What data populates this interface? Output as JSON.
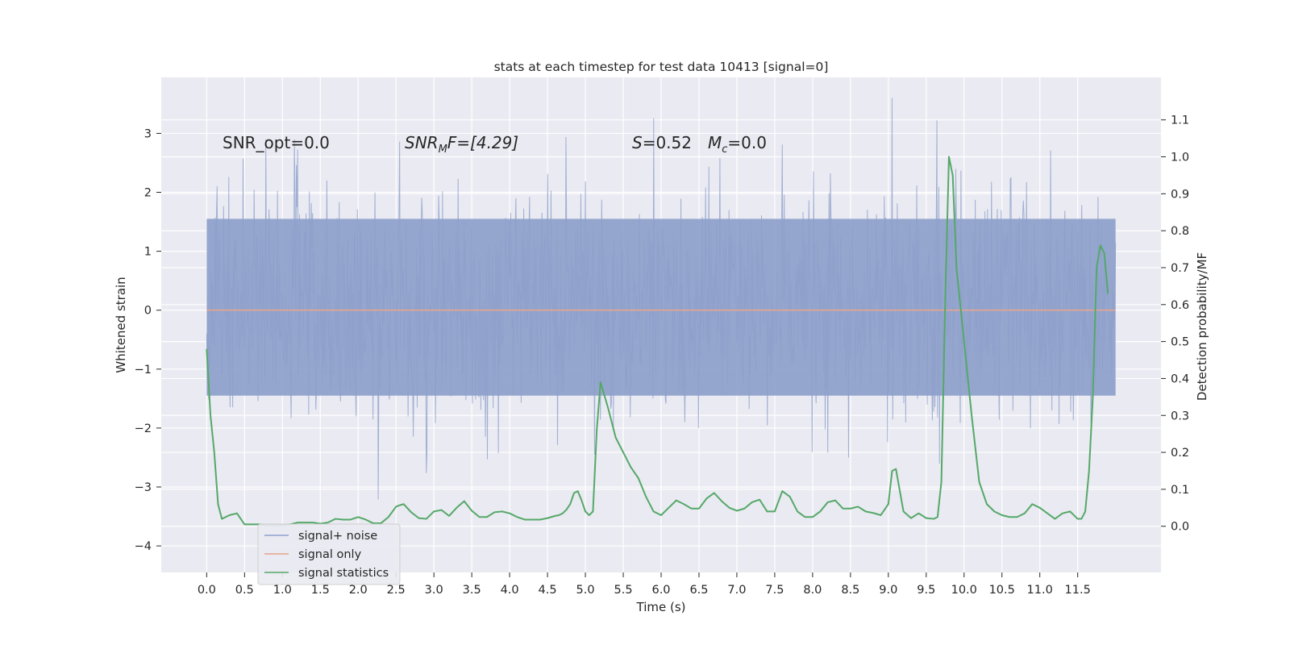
{
  "chart_data": {
    "type": "line",
    "title": "stats at each timestep for test data 10413 [signal=0]",
    "xlabel": "Time (s)",
    "ylabel": "Whitened strain",
    "y2label": "Detection probability/MF",
    "xlim": [
      -0.6,
      12.6
    ],
    "ylim": [
      -4.45,
      3.95
    ],
    "y2lim": [
      -0.125,
      1.215
    ],
    "xticks": [
      0.0,
      0.5,
      1.0,
      1.5,
      2.0,
      2.5,
      3.0,
      3.5,
      4.0,
      4.5,
      5.0,
      5.5,
      6.0,
      6.5,
      7.0,
      7.5,
      8.0,
      8.5,
      9.0,
      9.5,
      10.0,
      10.5,
      11.0,
      11.5
    ],
    "xtick_labels": [
      "0.0",
      "0.5",
      "1.0",
      "1.5",
      "2.0",
      "2.5",
      "3.0",
      "3.5",
      "4.0",
      "4.5",
      "5.0",
      "5.5",
      "6.0",
      "6.5",
      "7.0",
      "7.5",
      "8.0",
      "8.5",
      "9.0",
      "9.5",
      "10.0",
      "10.5",
      "11.0",
      "11.5"
    ],
    "yticks": [
      -4,
      -3,
      -2,
      -1,
      0,
      1,
      2,
      3
    ],
    "ytick_labels": [
      "−4",
      "−3",
      "−2",
      "−1",
      "0",
      "1",
      "2",
      "3"
    ],
    "y2ticks": [
      0.0,
      0.1,
      0.2,
      0.3,
      0.4,
      0.5,
      0.6,
      0.7,
      0.8,
      0.9,
      1.0,
      1.1
    ],
    "y2tick_labels": [
      "0.0",
      "0.1",
      "0.2",
      "0.3",
      "0.4",
      "0.5",
      "0.6",
      "0.7",
      "0.8",
      "0.9",
      "1.0",
      "1.1"
    ],
    "grid": true,
    "legend_position": "lower-left",
    "annotations": {
      "snr_opt": "SNR_opt=0.0",
      "snr_mf_prefix": "SNR",
      "snr_mf_sub": "M",
      "snr_mf_suffix": "F=[4.29]",
      "s_symbol": "S",
      "s_value": "=0.52",
      "mc_symbol": "M",
      "mc_sub": "c",
      "mc_value": "=0.0"
    },
    "series": [
      {
        "name": "signal+ noise",
        "axis": "left",
        "color": "#8da0cb",
        "opacity": 0.8,
        "x_range": [
          0.0,
          12.0
        ],
        "envelope_min": -2.0,
        "envelope_max": 2.2,
        "abs_min": -3.65,
        "abs_max": 3.6
      },
      {
        "name": "signal only",
        "axis": "left",
        "color": "#e8a48c",
        "x_range": [
          0.0,
          12.0
        ],
        "values": [
          0.0,
          0.0
        ]
      },
      {
        "name": "signal statistics",
        "axis": "right",
        "color": "#55a868",
        "x": [
          0.0,
          0.05,
          0.1,
          0.15,
          0.2,
          0.3,
          0.4,
          0.5,
          0.6,
          0.7,
          0.8,
          0.9,
          1.0,
          1.1,
          1.2,
          1.3,
          1.4,
          1.5,
          1.6,
          1.7,
          1.8,
          1.9,
          2.0,
          2.1,
          2.2,
          2.3,
          2.4,
          2.5,
          2.55,
          2.6,
          2.7,
          2.8,
          2.9,
          3.0,
          3.1,
          3.2,
          3.3,
          3.4,
          3.5,
          3.6,
          3.7,
          3.8,
          3.9,
          4.0,
          4.1,
          4.2,
          4.3,
          4.4,
          4.5,
          4.6,
          4.65,
          4.7,
          4.75,
          4.8,
          4.85,
          4.9,
          4.95,
          5.0,
          5.05,
          5.1,
          5.15,
          5.2,
          5.3,
          5.4,
          5.5,
          5.6,
          5.7,
          5.8,
          5.9,
          6.0,
          6.1,
          6.2,
          6.3,
          6.4,
          6.5,
          6.6,
          6.7,
          6.8,
          6.9,
          7.0,
          7.1,
          7.2,
          7.3,
          7.4,
          7.5,
          7.6,
          7.7,
          7.8,
          7.9,
          8.0,
          8.1,
          8.2,
          8.3,
          8.4,
          8.5,
          8.6,
          8.7,
          8.8,
          8.9,
          9.0,
          9.05,
          9.1,
          9.2,
          9.3,
          9.4,
          9.5,
          9.6,
          9.65,
          9.7,
          9.75,
          9.8,
          9.85,
          9.9,
          10.0,
          10.1,
          10.2,
          10.3,
          10.4,
          10.5,
          10.6,
          10.7,
          10.8,
          10.9,
          11.0,
          11.1,
          11.2,
          11.3,
          11.4,
          11.5,
          11.55,
          11.6,
          11.65,
          11.7,
          11.75,
          11.8,
          11.85,
          11.9
        ],
        "values": [
          0.48,
          0.3,
          0.2,
          0.06,
          0.02,
          0.03,
          0.035,
          0.005,
          0.005,
          0.005,
          0.003,
          0.003,
          0.003,
          0.005,
          0.01,
          0.01,
          0.01,
          0.007,
          0.01,
          0.02,
          0.018,
          0.018,
          0.025,
          0.018,
          0.008,
          0.008,
          0.025,
          0.053,
          0.057,
          0.06,
          0.038,
          0.022,
          0.02,
          0.04,
          0.044,
          0.028,
          0.05,
          0.068,
          0.042,
          0.025,
          0.025,
          0.038,
          0.04,
          0.035,
          0.025,
          0.018,
          0.018,
          0.018,
          0.022,
          0.028,
          0.03,
          0.035,
          0.045,
          0.06,
          0.09,
          0.095,
          0.07,
          0.04,
          0.03,
          0.04,
          0.26,
          0.39,
          0.32,
          0.24,
          0.2,
          0.16,
          0.13,
          0.08,
          0.04,
          0.03,
          0.05,
          0.07,
          0.06,
          0.048,
          0.048,
          0.075,
          0.09,
          0.068,
          0.05,
          0.042,
          0.048,
          0.065,
          0.072,
          0.04,
          0.04,
          0.095,
          0.08,
          0.04,
          0.025,
          0.025,
          0.04,
          0.065,
          0.07,
          0.048,
          0.048,
          0.053,
          0.04,
          0.036,
          0.03,
          0.06,
          0.15,
          0.155,
          0.04,
          0.022,
          0.035,
          0.022,
          0.02,
          0.025,
          0.12,
          0.6,
          1.0,
          0.95,
          0.7,
          0.5,
          0.3,
          0.12,
          0.06,
          0.04,
          0.03,
          0.025,
          0.025,
          0.035,
          0.06,
          0.05,
          0.035,
          0.02,
          0.035,
          0.04,
          0.02,
          0.02,
          0.04,
          0.15,
          0.35,
          0.7,
          0.76,
          0.74,
          0.63
        ]
      }
    ]
  },
  "legend": {
    "items": [
      {
        "label": "signal+ noise",
        "color": "#8da0cb"
      },
      {
        "label": "signal only",
        "color": "#e8a48c"
      },
      {
        "label": "signal statistics",
        "color": "#55a868"
      }
    ]
  }
}
